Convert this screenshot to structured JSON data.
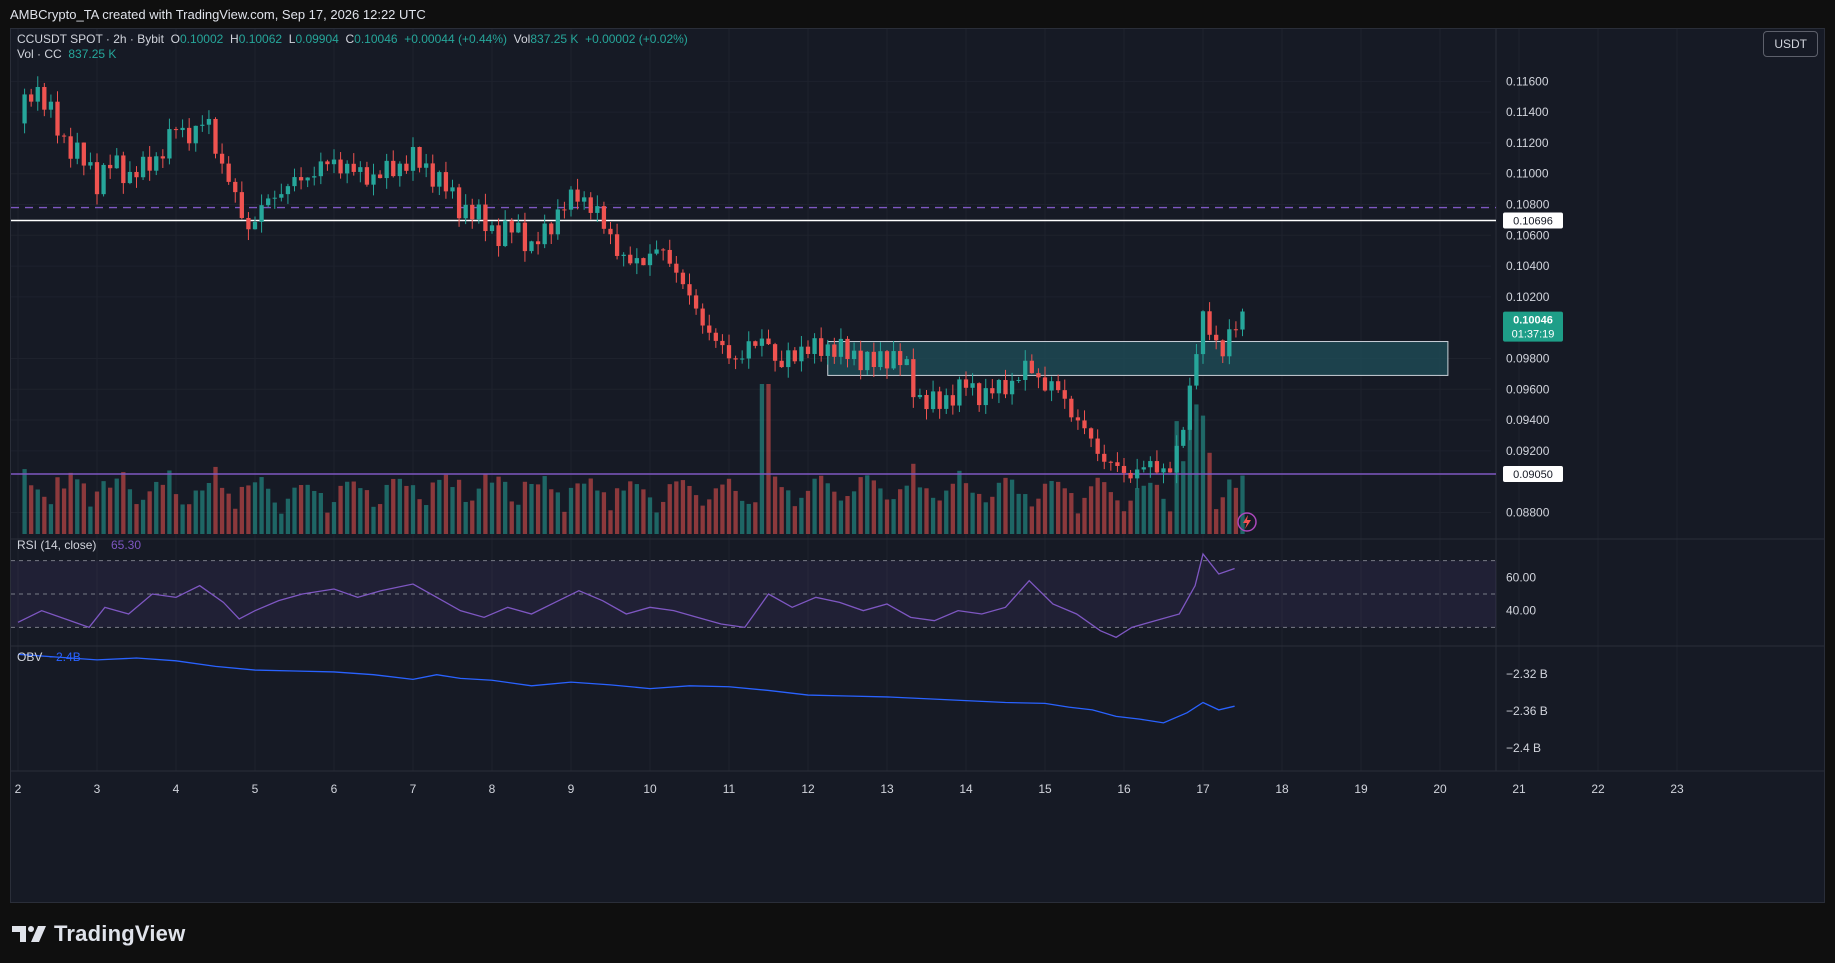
{
  "header": {
    "attribution": "AMBCrypto_TA created with TradingView.com, Sep 17, 2026 12:22 UTC"
  },
  "legend": {
    "symbol": "CCUSDT SPOT · 2h · Bybit",
    "open_label": "O",
    "open": "0.10002",
    "high_label": "H",
    "high": "0.10062",
    "low_label": "L",
    "low": "0.09904",
    "close_label": "C",
    "close": "0.10046",
    "change": "+0.00044 (+0.44%)",
    "vol_label": "Vol",
    "vol": "837.25 K",
    "vol_change": "+0.00002 (+0.02%)",
    "vol_cc_label": "Vol · CC",
    "vol_cc": "837.25 K"
  },
  "currency_button": "USDT",
  "rsi": {
    "label": "RSI (14, close)",
    "value": "65.30"
  },
  "obv": {
    "label": "OBV",
    "value": "−2.4B"
  },
  "branding": {
    "name": "TradingView"
  },
  "colors": {
    "up": "#26a69a",
    "down": "#ef5350",
    "rsi_line": "#7e57c2",
    "obv_line": "#2962ff",
    "support_line": "#7e57c2",
    "dashed_line": "#7e57c2",
    "zone": "#1f4f5a",
    "price_badge": "#1e9e88"
  },
  "chart_data": {
    "type": "candlestick",
    "x_axis": {
      "labels": [
        "2",
        "3",
        "4",
        "5",
        "6",
        "7",
        "8",
        "9",
        "10",
        "11",
        "12",
        "13",
        "14",
        "15",
        "16",
        "17",
        "18",
        "19",
        "20",
        "21",
        "22",
        "23"
      ],
      "unit": "day (Sep)"
    },
    "price_axis": {
      "range": [
        0.0866,
        0.1168
      ],
      "ticks": [
        "0.11600",
        "0.11400",
        "0.11200",
        "0.11000",
        "0.10800",
        "0.10600",
        "0.10400",
        "0.10200",
        "0.09800",
        "0.09600",
        "0.09400",
        "0.09200",
        "0.08800"
      ]
    },
    "horizontal_lines": [
      {
        "label": "0.10696",
        "value": 0.10696,
        "style": "solid",
        "color": "#ffffff"
      },
      {
        "label": "0.10780",
        "value": 0.1078,
        "style": "dashed",
        "color": "#7e57c2",
        "labeled": false
      },
      {
        "label": "0.09050",
        "value": 0.0905,
        "style": "solid",
        "color": "#7e57c2"
      }
    ],
    "zone": {
      "x_start": 12.25,
      "x_end": 20.1,
      "low": 0.0969,
      "high": 0.0991
    },
    "last_price": {
      "value": "0.10046",
      "countdown": "01:37:19"
    },
    "price_path": [
      [
        2.0,
        0.1135
      ],
      [
        2.2,
        0.1158
      ],
      [
        2.4,
        0.114
      ],
      [
        2.6,
        0.112
      ],
      [
        2.9,
        0.1105
      ],
      [
        3.0,
        0.1095
      ],
      [
        3.2,
        0.1108
      ],
      [
        3.4,
        0.1098
      ],
      [
        3.6,
        0.1104
      ],
      [
        3.8,
        0.1112
      ],
      [
        4.0,
        0.113
      ],
      [
        4.2,
        0.1125
      ],
      [
        4.4,
        0.1135
      ],
      [
        4.5,
        0.1118
      ],
      [
        4.7,
        0.109
      ],
      [
        4.9,
        0.1065
      ],
      [
        5.0,
        0.107
      ],
      [
        5.2,
        0.1085
      ],
      [
        5.5,
        0.1094
      ],
      [
        5.8,
        0.1103
      ],
      [
        6.0,
        0.1108
      ],
      [
        6.3,
        0.11
      ],
      [
        6.5,
        0.1098
      ],
      [
        6.8,
        0.1104
      ],
      [
        7.0,
        0.111
      ],
      [
        7.2,
        0.1102
      ],
      [
        7.4,
        0.1092
      ],
      [
        7.6,
        0.1078
      ],
      [
        7.9,
        0.107
      ],
      [
        8.1,
        0.1058
      ],
      [
        8.3,
        0.1068
      ],
      [
        8.5,
        0.105
      ],
      [
        8.7,
        0.1065
      ],
      [
        8.9,
        0.1078
      ],
      [
        9.1,
        0.1088
      ],
      [
        9.3,
        0.1075
      ],
      [
        9.5,
        0.106
      ],
      [
        9.7,
        0.104
      ],
      [
        9.9,
        0.1045
      ],
      [
        10.1,
        0.105
      ],
      [
        10.3,
        0.1042
      ],
      [
        10.5,
        0.1018
      ],
      [
        10.7,
        0.1002
      ],
      [
        10.9,
        0.0985
      ],
      [
        11.1,
        0.098
      ],
      [
        11.3,
        0.0988
      ],
      [
        11.5,
        0.0995
      ],
      [
        11.6,
        0.097
      ],
      [
        11.8,
        0.0985
      ],
      [
        12.0,
        0.0985
      ],
      [
        12.2,
        0.0988
      ],
      [
        12.4,
        0.0985
      ],
      [
        12.6,
        0.0982
      ],
      [
        12.8,
        0.0976
      ],
      [
        13.0,
        0.0982
      ],
      [
        13.2,
        0.0978
      ],
      [
        13.4,
        0.0954
      ],
      [
        13.6,
        0.095
      ],
      [
        13.8,
        0.0955
      ],
      [
        14.0,
        0.0963
      ],
      [
        14.2,
        0.0956
      ],
      [
        14.4,
        0.096
      ],
      [
        14.6,
        0.0965
      ],
      [
        14.8,
        0.0975
      ],
      [
        15.0,
        0.0963
      ],
      [
        15.2,
        0.0958
      ],
      [
        15.4,
        0.094
      ],
      [
        15.6,
        0.0925
      ],
      [
        15.8,
        0.0912
      ],
      [
        16.0,
        0.0905
      ],
      [
        16.2,
        0.0908
      ],
      [
        16.4,
        0.091
      ],
      [
        16.6,
        0.0908
      ],
      [
        16.7,
        0.0922
      ],
      [
        16.8,
        0.095
      ],
      [
        16.9,
        0.0985
      ],
      [
        17.0,
        0.1005
      ],
      [
        17.2,
        0.0985
      ],
      [
        17.4,
        0.1
      ],
      [
        17.5,
        0.1004
      ]
    ],
    "rsi": {
      "range": [
        20,
        80
      ],
      "ticks": [
        "60.00",
        "40.00"
      ],
      "bands": [
        70,
        50,
        30
      ],
      "path": [
        [
          2.0,
          33
        ],
        [
          2.3,
          40
        ],
        [
          2.6,
          35
        ],
        [
          2.9,
          30
        ],
        [
          3.1,
          42
        ],
        [
          3.4,
          38
        ],
        [
          3.7,
          50
        ],
        [
          4.0,
          48
        ],
        [
          4.3,
          55
        ],
        [
          4.6,
          45
        ],
        [
          4.8,
          35
        ],
        [
          5.0,
          40
        ],
        [
          5.3,
          46
        ],
        [
          5.6,
          50
        ],
        [
          6.0,
          53
        ],
        [
          6.3,
          48
        ],
        [
          6.6,
          52
        ],
        [
          7.0,
          56
        ],
        [
          7.3,
          48
        ],
        [
          7.6,
          40
        ],
        [
          7.9,
          36
        ],
        [
          8.2,
          42
        ],
        [
          8.5,
          38
        ],
        [
          8.8,
          45
        ],
        [
          9.1,
          52
        ],
        [
          9.4,
          46
        ],
        [
          9.7,
          38
        ],
        [
          10.0,
          42
        ],
        [
          10.3,
          40
        ],
        [
          10.6,
          36
        ],
        [
          10.9,
          32
        ],
        [
          11.2,
          30
        ],
        [
          11.5,
          50
        ],
        [
          11.8,
          42
        ],
        [
          12.1,
          48
        ],
        [
          12.4,
          45
        ],
        [
          12.7,
          40
        ],
        [
          13.0,
          44
        ],
        [
          13.3,
          36
        ],
        [
          13.6,
          34
        ],
        [
          13.9,
          40
        ],
        [
          14.2,
          38
        ],
        [
          14.5,
          42
        ],
        [
          14.8,
          58
        ],
        [
          15.1,
          44
        ],
        [
          15.4,
          38
        ],
        [
          15.7,
          28
        ],
        [
          15.9,
          24
        ],
        [
          16.1,
          30
        ],
        [
          16.4,
          34
        ],
        [
          16.7,
          38
        ],
        [
          16.9,
          55
        ],
        [
          17.0,
          74
        ],
        [
          17.2,
          62
        ],
        [
          17.4,
          65.3
        ]
      ]
    },
    "obv": {
      "range": [
        -2.425,
        -2.29
      ],
      "ticks": [
        "−2.32 B",
        "−2.36 B",
        "−2.4 B"
      ],
      "path": [
        [
          2.0,
          -2.299
        ],
        [
          2.5,
          -2.302
        ],
        [
          3.0,
          -2.305
        ],
        [
          3.5,
          -2.303
        ],
        [
          4.0,
          -2.306
        ],
        [
          4.5,
          -2.312
        ],
        [
          5.0,
          -2.316
        ],
        [
          5.5,
          -2.317
        ],
        [
          6.0,
          -2.318
        ],
        [
          6.5,
          -2.321
        ],
        [
          7.0,
          -2.326
        ],
        [
          7.3,
          -2.321
        ],
        [
          7.6,
          -2.325
        ],
        [
          8.0,
          -2.327
        ],
        [
          8.5,
          -2.333
        ],
        [
          9.0,
          -2.329
        ],
        [
          9.5,
          -2.332
        ],
        [
          10.0,
          -2.336
        ],
        [
          10.5,
          -2.333
        ],
        [
          11.0,
          -2.334
        ],
        [
          11.5,
          -2.338
        ],
        [
          12.0,
          -2.343
        ],
        [
          12.5,
          -2.344
        ],
        [
          13.0,
          -2.345
        ],
        [
          13.5,
          -2.347
        ],
        [
          14.0,
          -2.349
        ],
        [
          14.5,
          -2.351
        ],
        [
          15.0,
          -2.352
        ],
        [
          15.3,
          -2.356
        ],
        [
          15.6,
          -2.359
        ],
        [
          15.9,
          -2.366
        ],
        [
          16.2,
          -2.369
        ],
        [
          16.5,
          -2.373
        ],
        [
          16.8,
          -2.362
        ],
        [
          17.0,
          -2.351
        ],
        [
          17.2,
          -2.359
        ],
        [
          17.4,
          -2.355
        ]
      ]
    }
  }
}
